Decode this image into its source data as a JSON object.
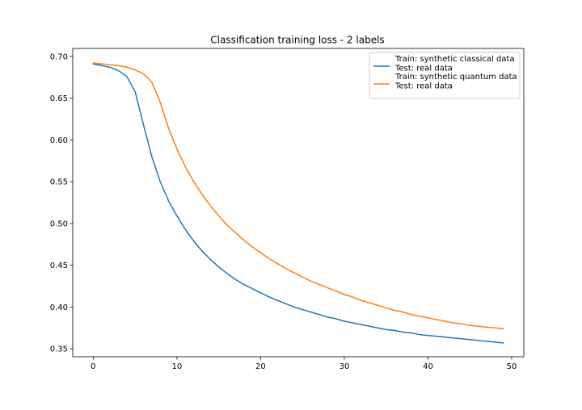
{
  "chart_data": {
    "type": "line",
    "title": "Classification training loss - 2 labels",
    "xlabel": "",
    "ylabel": "",
    "xlim": [
      -2.45,
      51.45
    ],
    "ylim": [
      0.3405,
      0.7095
    ],
    "x_ticks": [
      0,
      10,
      20,
      30,
      40,
      50
    ],
    "y_ticks": [
      0.35,
      0.4,
      0.45,
      0.5,
      0.55,
      0.6,
      0.65,
      0.7
    ],
    "y_tick_labels": [
      "0.35",
      "0.40",
      "0.45",
      "0.50",
      "0.55",
      "0.60",
      "0.65",
      "0.70"
    ],
    "grid": false,
    "legend_position": "upper right",
    "x": [
      0,
      1,
      2,
      3,
      4,
      5,
      6,
      7,
      8,
      9,
      10,
      11,
      12,
      13,
      14,
      15,
      16,
      17,
      18,
      19,
      20,
      21,
      22,
      23,
      24,
      25,
      26,
      27,
      28,
      29,
      30,
      31,
      32,
      33,
      34,
      35,
      36,
      37,
      38,
      39,
      40,
      41,
      42,
      43,
      44,
      45,
      46,
      47,
      48,
      49
    ],
    "series": [
      {
        "name": "Train: synthetic classical data\nTest: real data",
        "name_lines": [
          "Train: synthetic classical data",
          "Test: real data"
        ],
        "color": "#1f77b4",
        "values": [
          0.691,
          0.689,
          0.687,
          0.683,
          0.676,
          0.658,
          0.618,
          0.58,
          0.55,
          0.527,
          0.509,
          0.493,
          0.479,
          0.467,
          0.457,
          0.448,
          0.44,
          0.433,
          0.427,
          0.422,
          0.417,
          0.412,
          0.408,
          0.404,
          0.4,
          0.397,
          0.394,
          0.391,
          0.388,
          0.386,
          0.383,
          0.381,
          0.379,
          0.377,
          0.375,
          0.373,
          0.372,
          0.37,
          0.369,
          0.367,
          0.366,
          0.365,
          0.364,
          0.363,
          0.362,
          0.361,
          0.36,
          0.359,
          0.358,
          0.357
        ]
      },
      {
        "name": "Train: synthetic quantum data\nTest: real data",
        "name_lines": [
          "Train: synthetic quantum data",
          "Test: real data"
        ],
        "color": "#ff7f0e",
        "values": [
          0.692,
          0.691,
          0.69,
          0.689,
          0.687,
          0.684,
          0.679,
          0.669,
          0.645,
          0.614,
          0.589,
          0.568,
          0.55,
          0.535,
          0.521,
          0.509,
          0.498,
          0.489,
          0.48,
          0.472,
          0.465,
          0.458,
          0.452,
          0.446,
          0.441,
          0.436,
          0.431,
          0.427,
          0.423,
          0.419,
          0.415,
          0.412,
          0.408,
          0.405,
          0.402,
          0.399,
          0.396,
          0.394,
          0.391,
          0.389,
          0.387,
          0.385,
          0.383,
          0.381,
          0.38,
          0.378,
          0.377,
          0.376,
          0.375,
          0.374
        ]
      }
    ]
  }
}
